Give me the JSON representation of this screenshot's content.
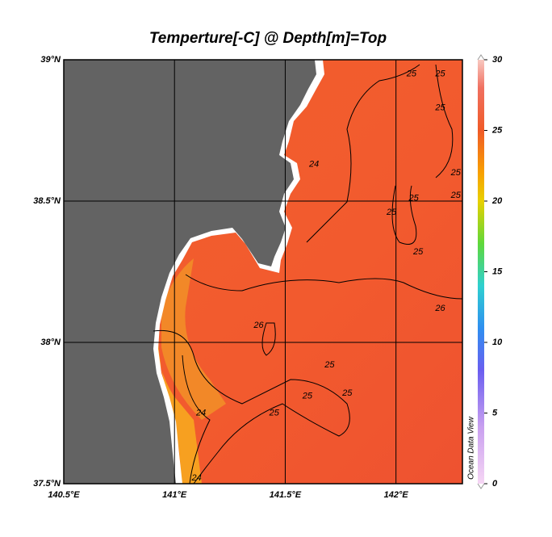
{
  "chart_data": {
    "type": "map",
    "title": "Temperture[-C] @ Depth[m]=Top",
    "xlim": [
      140.5,
      142.3
    ],
    "ylim": [
      37.5,
      39
    ],
    "xticks": [
      {
        "value": 140.5,
        "label": "140.5°E"
      },
      {
        "value": 141,
        "label": "141°E"
      },
      {
        "value": 141.5,
        "label": "141.5°E"
      },
      {
        "value": 142,
        "label": "142°E"
      }
    ],
    "yticks": [
      {
        "value": 37.5,
        "label": "37.5°N"
      },
      {
        "value": 38,
        "label": "38°N"
      },
      {
        "value": 38.5,
        "label": "38.5°N"
      },
      {
        "value": 39,
        "label": "39°N"
      }
    ],
    "grid": true,
    "colorbar": {
      "lim": [
        0,
        30
      ],
      "ticks": [
        0,
        5,
        10,
        15,
        20,
        25,
        30
      ],
      "colormap": [
        {
          "value": 0,
          "color": "#f6d6f4"
        },
        {
          "value": 4,
          "color": "#c9a0f0"
        },
        {
          "value": 8,
          "color": "#6a5ef0"
        },
        {
          "value": 11,
          "color": "#2f8ff0"
        },
        {
          "value": 14,
          "color": "#2fd0d0"
        },
        {
          "value": 17,
          "color": "#5fd83a"
        },
        {
          "value": 20,
          "color": "#e8d000"
        },
        {
          "value": 22,
          "color": "#f8a000"
        },
        {
          "value": 25,
          "color": "#f05a28"
        },
        {
          "value": 28,
          "color": "#f07060"
        },
        {
          "value": 30,
          "color": "#f8c8c0"
        }
      ]
    },
    "contour_labels": [
      {
        "value": 25,
        "lon": 142.07,
        "lat": 38.95
      },
      {
        "value": 25,
        "lon": 142.2,
        "lat": 38.95
      },
      {
        "value": 25,
        "lon": 142.2,
        "lat": 38.83
      },
      {
        "value": 24,
        "lon": 141.63,
        "lat": 38.63
      },
      {
        "value": 25,
        "lon": 142.27,
        "lat": 38.6
      },
      {
        "value": 25,
        "lon": 142.27,
        "lat": 38.52
      },
      {
        "value": 25,
        "lon": 142.08,
        "lat": 38.51
      },
      {
        "value": 25,
        "lon": 141.98,
        "lat": 38.46
      },
      {
        "value": 25,
        "lon": 142.1,
        "lat": 38.32
      },
      {
        "value": 26,
        "lon": 142.2,
        "lat": 38.12
      },
      {
        "value": 26,
        "lon": 141.38,
        "lat": 38.06
      },
      {
        "value": 25,
        "lon": 141.7,
        "lat": 37.92
      },
      {
        "value": 25,
        "lon": 141.6,
        "lat": 37.81
      },
      {
        "value": 25,
        "lon": 141.45,
        "lat": 37.75
      },
      {
        "value": 24,
        "lon": 141.12,
        "lat": 37.75
      },
      {
        "value": 25,
        "lon": 141.78,
        "lat": 37.82
      },
      {
        "value": 24,
        "lon": 141.1,
        "lat": 37.52
      }
    ],
    "watermark": "Ocean Data View"
  }
}
